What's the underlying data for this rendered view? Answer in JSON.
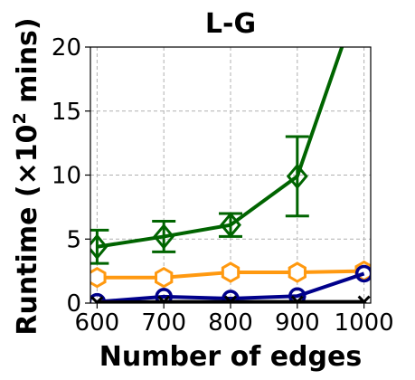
{
  "chart_data": {
    "type": "line",
    "title": "L-G",
    "xlabel": "Number of edges",
    "ylabel": "Runtime (×10² mins)",
    "ylabel_parts": {
      "main": "Runtime (×10",
      "sup": "2",
      "end": " mins)"
    },
    "x": [
      600,
      700,
      800,
      900,
      1000
    ],
    "x_ticks": [
      "600",
      "700",
      "800",
      "900",
      "1000"
    ],
    "y_ticks": [
      "0",
      "5",
      "10",
      "15",
      "20"
    ],
    "xlim": [
      590,
      1010
    ],
    "ylim": [
      0,
      20
    ],
    "grid": true,
    "legend": "none",
    "series": [
      {
        "color": "#006400",
        "marker": "diamond",
        "values": [
          4.4,
          5.2,
          6.1,
          9.9,
          25.0
        ],
        "err": [
          1.3,
          1.2,
          0.9,
          3.1,
          null
        ]
      },
      {
        "color": "#ff9910",
        "marker": "hexagon",
        "values": [
          2.0,
          2.0,
          2.4,
          2.4,
          2.5
        ],
        "err": [
          null,
          null,
          null,
          null,
          null
        ]
      },
      {
        "color": "#00008b",
        "marker": "circle",
        "values": [
          0.1,
          0.5,
          0.35,
          0.55,
          2.3
        ],
        "err": [
          null,
          null,
          null,
          null,
          null
        ]
      },
      {
        "color": "#8b1a1a",
        "marker": "none",
        "values": [
          0.05,
          0.05,
          0.05,
          0.05,
          0.05
        ],
        "err": [
          null,
          null,
          null,
          null,
          null
        ]
      },
      {
        "color": "#000000",
        "marker": "x",
        "values": [
          0.05,
          0.1,
          0.1,
          0.1,
          0.1
        ],
        "err": [
          null,
          null,
          null,
          null,
          null
        ]
      }
    ]
  }
}
